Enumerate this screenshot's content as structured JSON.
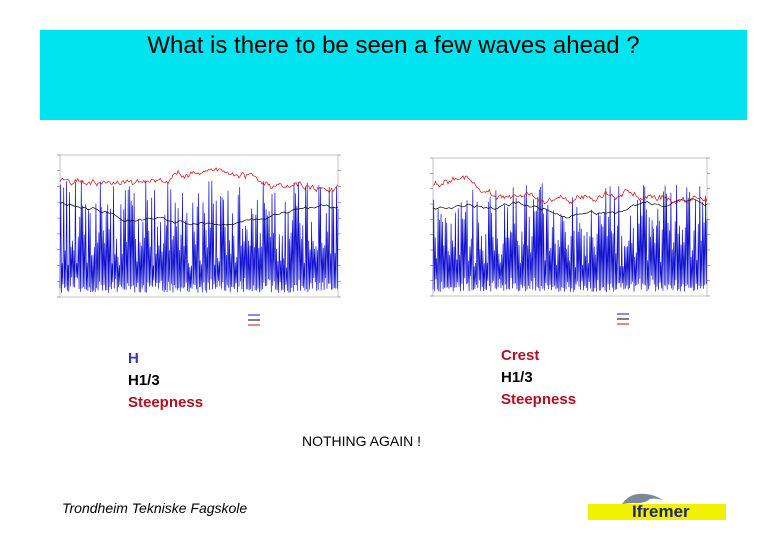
{
  "title": "What is there to be seen a few waves ahead ?",
  "left_legend": [
    "H",
    "H1/3",
    "Steepness"
  ],
  "right_legend": [
    "Crest",
    "H1/3",
    "Steepness"
  ],
  "message": "NOTHING AGAIN !",
  "institution": "Trondheim Tekniske Fagskole",
  "logo_text": "Ifremer",
  "colors": {
    "title_band": "#00e4f0",
    "wave": "#1010d0",
    "h13": "#000000",
    "steepness": "#cc1010",
    "logo_bar": "#f0f000"
  }
}
